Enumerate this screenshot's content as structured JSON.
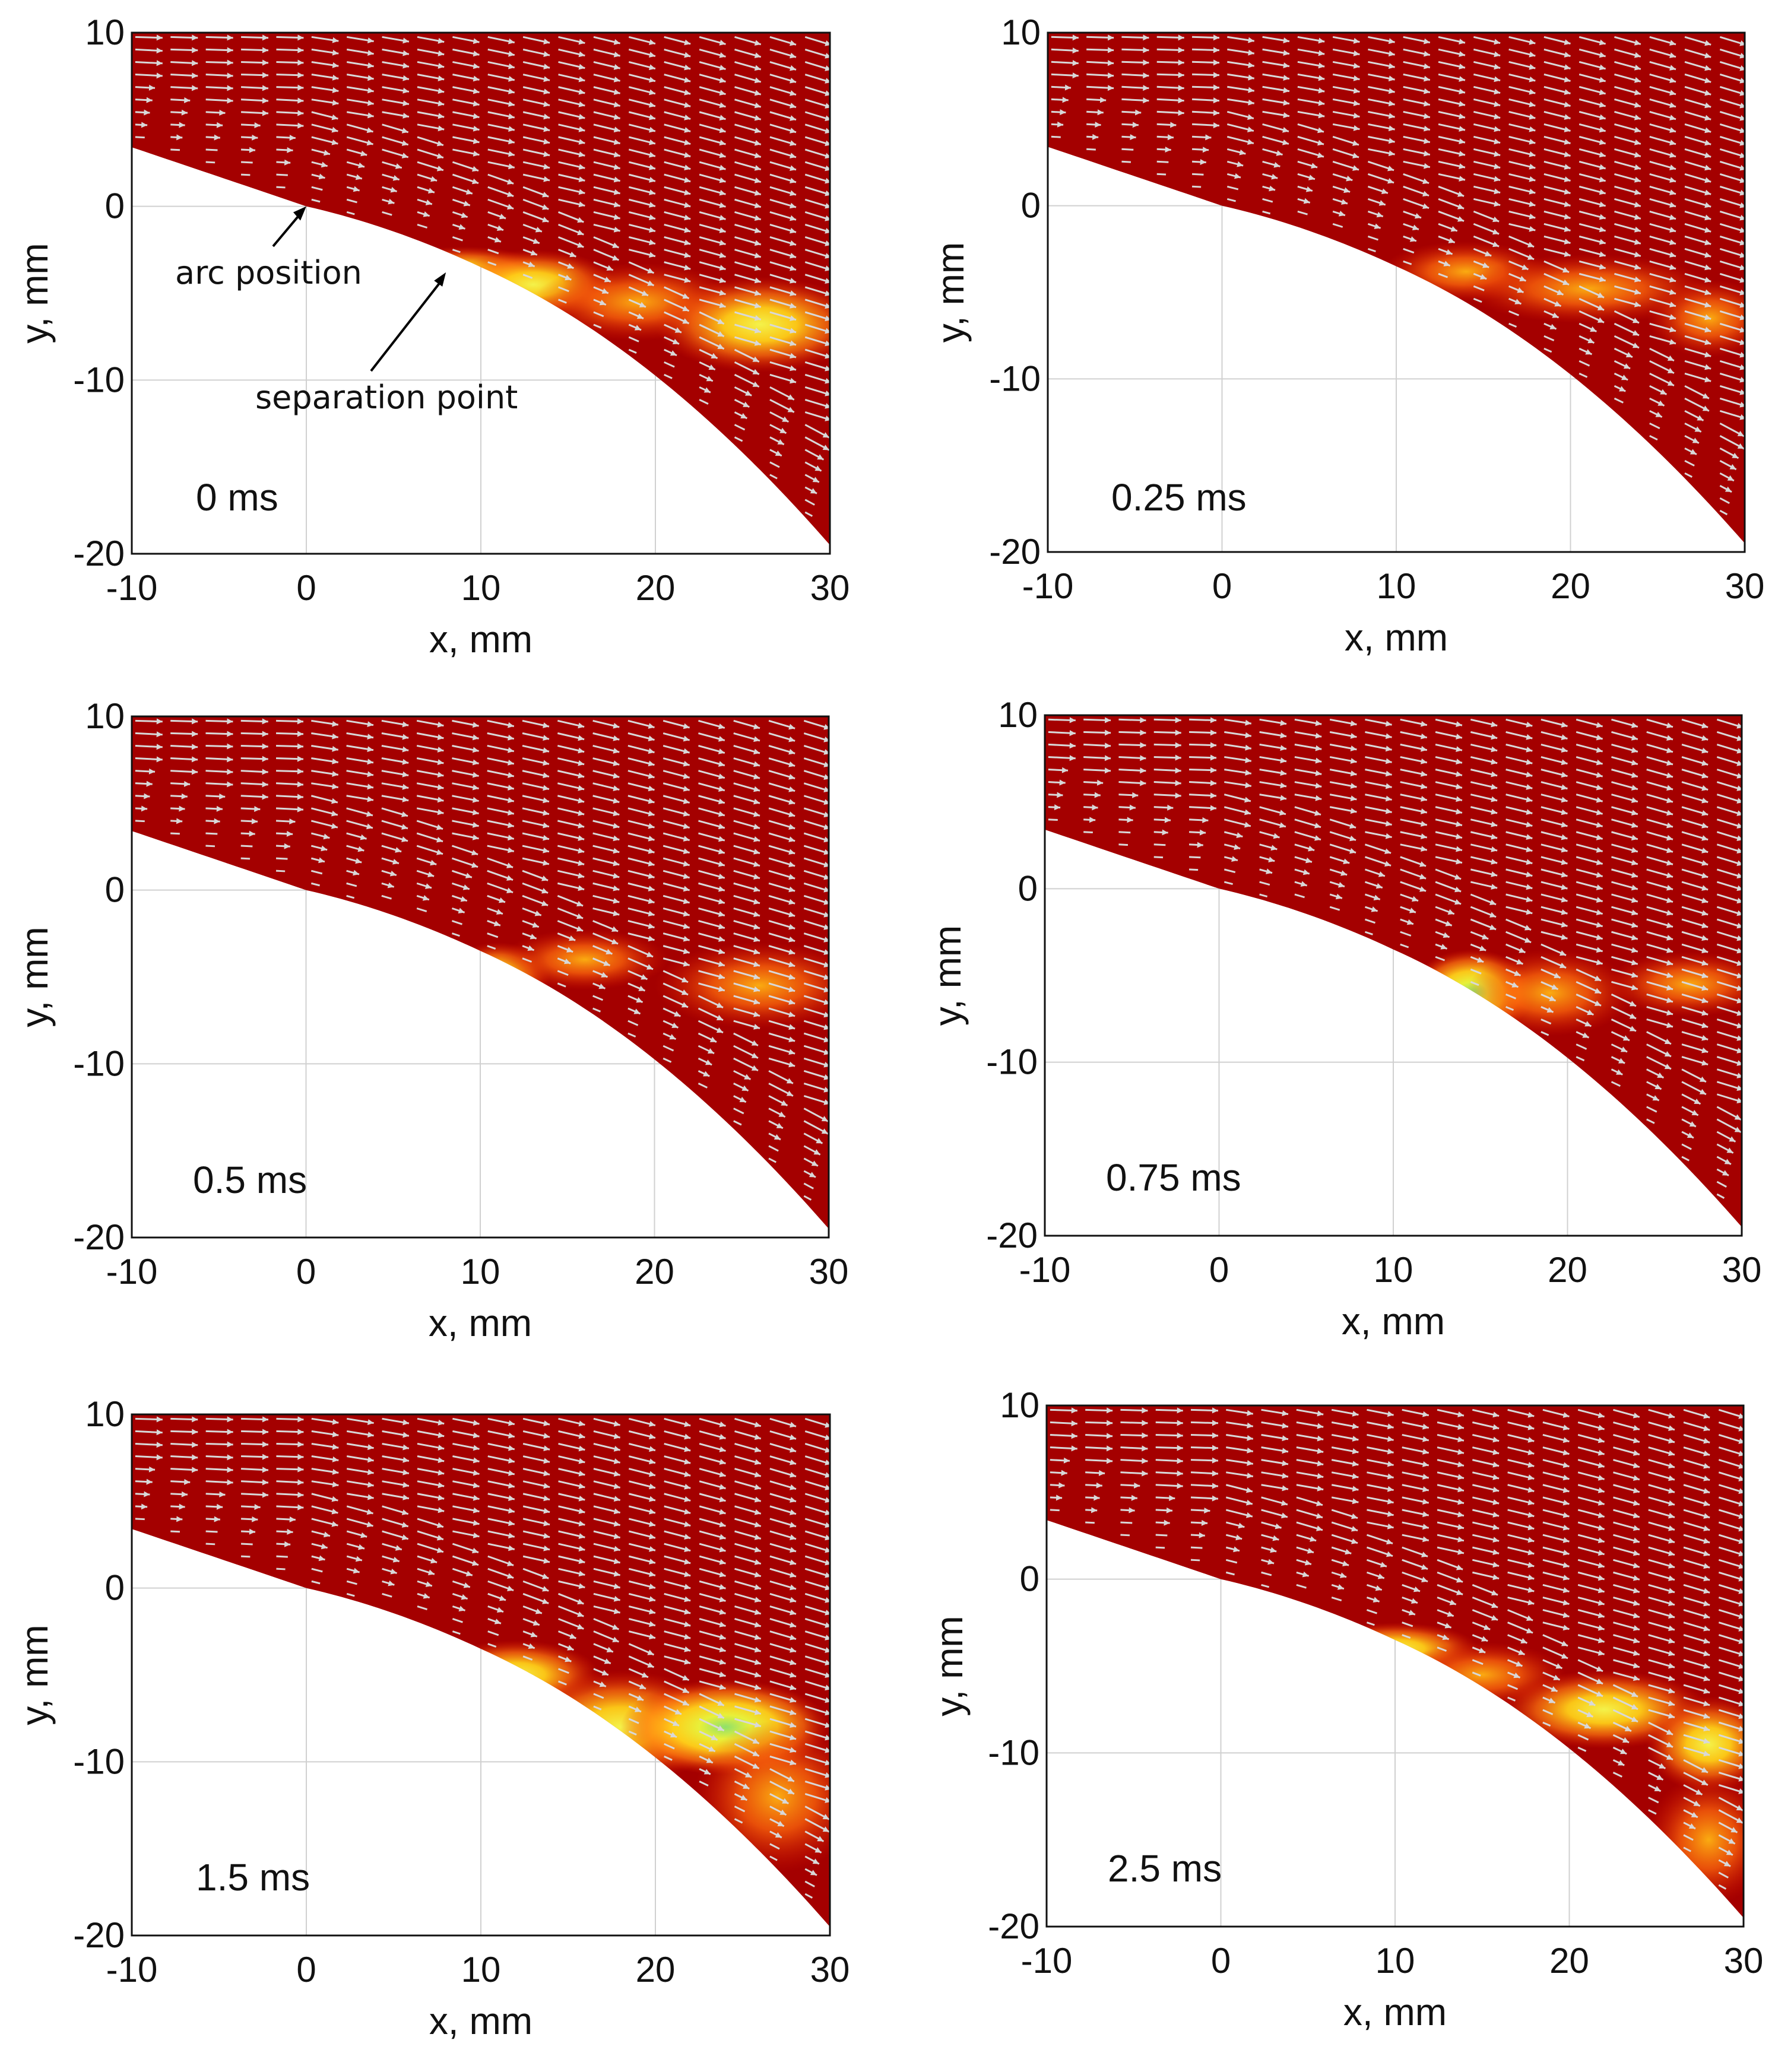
{
  "colors": {
    "field": "#a40000",
    "arrow": "#d8d8d8",
    "grid": "#d0d0d0",
    "axis": "#111111"
  },
  "chart_data": [
    {
      "type": "contour",
      "time_label": "0 ms",
      "xlabel": "x, mm",
      "ylabel": "y, mm",
      "xlim": [
        -10,
        30
      ],
      "ylim": [
        -20,
        10
      ],
      "xticks": [
        "-10",
        "0",
        "10",
        "20",
        "30"
      ],
      "yticks": [
        "-20",
        "-10",
        "0",
        "10"
      ],
      "grid": true,
      "annotations": [
        {
          "text": "arc position",
          "point": [
            0,
            0
          ]
        },
        {
          "text": "separation point",
          "point": [
            8,
            -3.8
          ]
        }
      ],
      "hotspots": [
        {
          "center": [
            9,
            -3.8
          ],
          "size": [
            4,
            1.2
          ],
          "level": 0.55
        },
        {
          "center": [
            13,
            -4.5
          ],
          "size": [
            4,
            1.6
          ],
          "level": 0.45
        },
        {
          "center": [
            19,
            -5.5
          ],
          "size": [
            5,
            1.8
          ],
          "level": 0.42
        },
        {
          "center": [
            26,
            -6.8
          ],
          "size": [
            5,
            2.2
          ],
          "level": 0.5
        }
      ]
    },
    {
      "type": "contour",
      "time_label": "0.25 ms",
      "xlabel": "x, mm",
      "ylabel": "y, mm",
      "xlim": [
        -10,
        30
      ],
      "ylim": [
        -20,
        10
      ],
      "xticks": [
        "-10",
        "0",
        "10",
        "20",
        "30"
      ],
      "yticks": [
        "-20",
        "-10",
        "0",
        "10"
      ],
      "grid": true,
      "hotspots": [
        {
          "center": [
            14,
            -3.8
          ],
          "size": [
            4,
            1.4
          ],
          "level": 0.35
        },
        {
          "center": [
            21,
            -4.8
          ],
          "size": [
            6,
            1.6
          ],
          "level": 0.4
        },
        {
          "center": [
            28,
            -6.5
          ],
          "size": [
            3,
            1.8
          ],
          "level": 0.38
        }
      ]
    },
    {
      "type": "contour",
      "time_label": "0.5 ms",
      "xlabel": "x, mm",
      "ylabel": "y, mm",
      "xlim": [
        -10,
        30
      ],
      "ylim": [
        -20,
        10
      ],
      "xticks": [
        "-10",
        "0",
        "10",
        "20",
        "30"
      ],
      "yticks": [
        "-20",
        "-10",
        "0",
        "10"
      ],
      "grid": true,
      "hotspots": [
        {
          "center": [
            11,
            -5
          ],
          "size": [
            2.5,
            1.6
          ],
          "level": 0.55
        },
        {
          "center": [
            16,
            -4
          ],
          "size": [
            4,
            1.4
          ],
          "level": 0.3
        },
        {
          "center": [
            26,
            -5.5
          ],
          "size": [
            5,
            2
          ],
          "level": 0.42
        }
      ]
    },
    {
      "type": "contour",
      "time_label": "0.75 ms",
      "xlabel": "x, mm",
      "ylabel": "y, mm",
      "xlim": [
        -10,
        30
      ],
      "ylim": [
        -20,
        10
      ],
      "xticks": [
        "-10",
        "0",
        "10",
        "20",
        "30"
      ],
      "yticks": [
        "-20",
        "-10",
        "0",
        "10"
      ],
      "grid": true,
      "hotspots": [
        {
          "center": [
            14.5,
            -6
          ],
          "size": [
            3,
            2
          ],
          "level": 0.75
        },
        {
          "center": [
            19,
            -6
          ],
          "size": [
            4,
            2
          ],
          "level": 0.35
        },
        {
          "center": [
            27,
            -5.5
          ],
          "size": [
            4,
            1.5
          ],
          "level": 0.35
        }
      ]
    },
    {
      "type": "contour",
      "time_label": "1.5 ms",
      "xlabel": "x, mm",
      "ylabel": "y, mm",
      "xlim": [
        -10,
        30
      ],
      "ylim": [
        -20,
        10
      ],
      "xticks": [
        "-10",
        "0",
        "10",
        "20",
        "30"
      ],
      "yticks": [
        "-20",
        "-10",
        "0",
        "10"
      ],
      "grid": true,
      "hotspots": [
        {
          "center": [
            12,
            -5
          ],
          "size": [
            4,
            1.6
          ],
          "level": 0.5
        },
        {
          "center": [
            18,
            -8
          ],
          "size": [
            5,
            2.6
          ],
          "level": 0.5
        },
        {
          "center": [
            24,
            -8
          ],
          "size": [
            5,
            2.2
          ],
          "level": 0.72
        },
        {
          "center": [
            27,
            -12
          ],
          "size": [
            4,
            3.5
          ],
          "level": 0.3
        }
      ]
    },
    {
      "type": "contour",
      "time_label": "2.5 ms",
      "xlabel": "x, mm",
      "ylabel": "y, mm",
      "xlim": [
        -10,
        30
      ],
      "ylim": [
        -20,
        10
      ],
      "xticks": [
        "-10",
        "0",
        "10",
        "20",
        "30"
      ],
      "yticks": [
        "-20",
        "-10",
        "0",
        "10"
      ],
      "grid": true,
      "hotspots": [
        {
          "center": [
            10,
            -4
          ],
          "size": [
            4,
            1.2
          ],
          "level": 0.5
        },
        {
          "center": [
            15,
            -5.5
          ],
          "size": [
            4,
            1.5
          ],
          "level": 0.4
        },
        {
          "center": [
            22,
            -7.5
          ],
          "size": [
            5,
            1.8
          ],
          "level": 0.55
        },
        {
          "center": [
            28,
            -9.5
          ],
          "size": [
            3,
            2.2
          ],
          "level": 0.55
        },
        {
          "center": [
            28,
            -15
          ],
          "size": [
            3,
            3
          ],
          "level": 0.25
        }
      ]
    }
  ]
}
